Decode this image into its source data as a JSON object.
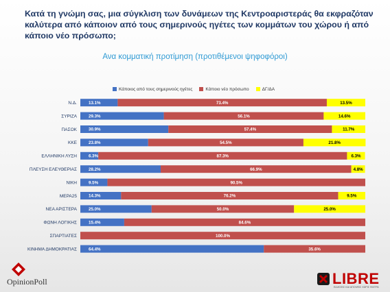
{
  "title": "Κατά τη γνώμη σας, μια σύγκλιση των δυνάμεων της Κεντροαριστεράς θα εκφραζόταν καλύτερα από κάποιον από τους σημερινούς ηγέτες των κομμάτων του χώρου ή από κάποιο νέο πρόσωπο;",
  "subtitle": "Ανα κομματική προτίμηση (προτιθέμενοι ψηφοφόροι)",
  "logos": {
    "left": "OpinionPoll",
    "right": "LIBRE",
    "right_sub": "ΕΙΔΗΣΕΙΣ ΚΑΙ ΑΠΟΨΕΙΣ ΧΩΡΙΣ ΦΙΛΤΡΑ"
  },
  "chart_data": {
    "type": "bar",
    "orientation": "horizontal",
    "stacked": true,
    "xlim": [
      0,
      100
    ],
    "legend_position": "top",
    "categories": [
      "Ν.Δ.",
      "ΣΥΡΙΖΑ",
      "ΠΑΣΟΚ",
      "ΚΚΕ",
      "ΕΛΛΗΝΙΚΗ ΛΥΣΗ",
      "ΠΛΕΥΣΗ ΕΛΕΥΘΕΡΙΑΣ",
      "ΝΙΚΗ",
      "ΜΕΡΑ25",
      "ΝΕΑ ΑΡΙΣΤΕΡΑ",
      "ΦΩΝΗ ΛΟΓΙΚΗΣ",
      "ΣΠΑΡΤΙΑΤΕΣ",
      "ΚΙΝΗΜΑ ΔΗΜΟΚΡΑΤΙΑΣ"
    ],
    "series": [
      {
        "name": "Κάποιος από τους σημερινούς ηγέτες",
        "color": "#4472c4",
        "values": [
          13.1,
          29.3,
          30.9,
          23.8,
          6.3,
          28.2,
          9.5,
          14.3,
          25.0,
          15.4,
          0,
          64.4
        ],
        "labels": [
          "13.1%",
          "29.3%",
          "30.9%",
          "23.8%",
          "6.3%",
          "28.2%",
          "9.5%",
          "14.3%",
          "25.0%",
          "15.4%",
          "",
          "64.4%"
        ]
      },
      {
        "name": "Κάποιο νέο πρόσωπο",
        "color": "#c0504d",
        "values": [
          73.4,
          56.1,
          57.4,
          54.5,
          87.3,
          66.9,
          90.5,
          76.2,
          50.0,
          84.6,
          100.0,
          35.6
        ],
        "labels": [
          "73.4%",
          "56.1%",
          "57.4%",
          "54.5%",
          "87.3%",
          "66.9%",
          "90.5%",
          "76.2%",
          "50.0%",
          "84.6%",
          "100.0%",
          "35.6%"
        ]
      },
      {
        "name": "ΔΓ/ΔΑ",
        "color": "#ffff00",
        "values": [
          13.5,
          14.6,
          11.7,
          21.8,
          6.3,
          4.8,
          0,
          9.5,
          25.0,
          0,
          0,
          0
        ],
        "labels": [
          "13.5%",
          "14.6%",
          "11.7%",
          "21.8%",
          "6.3%",
          "4.8%",
          "",
          "9.5%",
          "25.0%",
          "",
          "",
          ""
        ]
      }
    ]
  }
}
